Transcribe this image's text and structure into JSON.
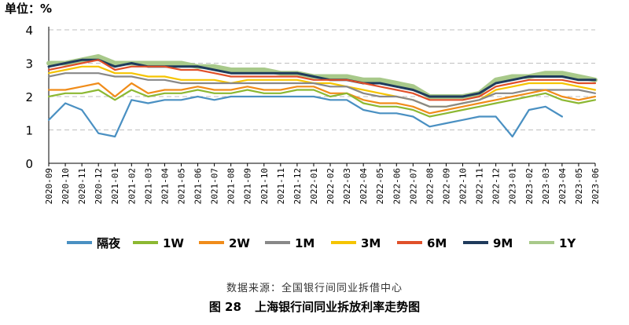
{
  "figure": {
    "unit_label": "单位：%",
    "source": "数据来源：全国银行间同业拆借中心",
    "caption_number": "图 28",
    "caption_title": "上海银行间同业拆放利率走势图"
  },
  "chart_data": {
    "type": "line",
    "title": "上海银行间同业拆放利率走势图",
    "xlabel": "",
    "ylabel": "单位：%",
    "ylim": [
      0,
      4
    ],
    "yticks": [
      0,
      1,
      2,
      3,
      4
    ],
    "grid": "horizontal-dashed",
    "legend_position": "bottom",
    "x": [
      "2020-09",
      "2020-10",
      "2020-11",
      "2020-12",
      "2021-01",
      "2021-02",
      "2021-03",
      "2021-04",
      "2021-05",
      "2021-06",
      "2021-07",
      "2021-08",
      "2021-09",
      "2021-10",
      "2021-11",
      "2021-12",
      "2022-01",
      "2022-02",
      "2022-03",
      "2022-04",
      "2022-05",
      "2022-06",
      "2022-07",
      "2022-08",
      "2022-09",
      "2022-10",
      "2022-11",
      "2022-12",
      "2023-01",
      "2023-02",
      "2023-03",
      "2023-04",
      "2023-05",
      "2023-06"
    ],
    "series": [
      {
        "name": "隔夜",
        "color": "#4a90c2",
        "values": [
          1.3,
          1.8,
          1.6,
          0.9,
          0.8,
          1.9,
          1.8,
          1.9,
          1.9,
          2.0,
          1.9,
          2.0,
          2.0,
          2.0,
          2.0,
          2.0,
          2.0,
          1.9,
          1.9,
          1.6,
          1.5,
          1.5,
          1.4,
          1.1,
          1.2,
          1.3,
          1.4,
          1.4,
          0.8,
          1.6,
          1.7,
          1.4,
          null,
          null
        ]
      },
      {
        "name": "1W",
        "color": "#8cb832",
        "values": [
          2.0,
          2.1,
          2.1,
          2.2,
          1.9,
          2.2,
          2.0,
          2.1,
          2.1,
          2.2,
          2.1,
          2.1,
          2.2,
          2.1,
          2.1,
          2.2,
          2.2,
          2.0,
          2.1,
          1.8,
          1.7,
          1.7,
          1.6,
          1.4,
          1.5,
          1.6,
          1.7,
          1.8,
          1.9,
          2.0,
          2.1,
          1.9,
          1.8,
          1.9
        ]
      },
      {
        "name": "2W",
        "color": "#f08c1a",
        "values": [
          2.2,
          2.2,
          2.3,
          2.4,
          2.0,
          2.4,
          2.1,
          2.2,
          2.2,
          2.3,
          2.2,
          2.2,
          2.3,
          2.2,
          2.2,
          2.3,
          2.3,
          2.1,
          2.1,
          1.9,
          1.8,
          1.8,
          1.7,
          1.5,
          1.6,
          1.7,
          1.8,
          1.9,
          2.0,
          2.1,
          2.2,
          2.0,
          1.9,
          2.0
        ]
      },
      {
        "name": "1M",
        "color": "#888888",
        "values": [
          2.6,
          2.7,
          2.7,
          2.7,
          2.6,
          2.6,
          2.5,
          2.5,
          2.4,
          2.4,
          2.4,
          2.4,
          2.4,
          2.4,
          2.4,
          2.4,
          2.4,
          2.3,
          2.3,
          2.1,
          2.0,
          2.0,
          1.9,
          1.7,
          1.7,
          1.8,
          1.9,
          2.1,
          2.1,
          2.2,
          2.2,
          2.2,
          2.2,
          2.1
        ]
      },
      {
        "name": "3M",
        "color": "#f5c400",
        "values": [
          2.7,
          2.8,
          2.9,
          2.9,
          2.7,
          2.7,
          2.6,
          2.6,
          2.5,
          2.5,
          2.5,
          2.4,
          2.5,
          2.5,
          2.5,
          2.5,
          2.4,
          2.4,
          2.3,
          2.2,
          2.1,
          2.0,
          1.9,
          1.7,
          1.7,
          1.8,
          1.9,
          2.2,
          2.3,
          2.4,
          2.4,
          2.4,
          2.3,
          2.2
        ]
      },
      {
        "name": "6M",
        "color": "#e0502a",
        "values": [
          2.8,
          2.9,
          3.0,
          3.1,
          2.8,
          2.9,
          2.9,
          2.9,
          2.8,
          2.8,
          2.7,
          2.6,
          2.6,
          2.6,
          2.6,
          2.6,
          2.5,
          2.5,
          2.5,
          2.4,
          2.3,
          2.2,
          2.1,
          1.9,
          1.9,
          1.9,
          2.0,
          2.3,
          2.4,
          2.5,
          2.5,
          2.5,
          2.4,
          2.4
        ]
      },
      {
        "name": "9M",
        "color": "#1f3b5c",
        "values": [
          2.9,
          3.0,
          3.1,
          3.1,
          2.9,
          3.0,
          2.9,
          2.9,
          2.9,
          2.9,
          2.8,
          2.7,
          2.7,
          2.7,
          2.7,
          2.7,
          2.6,
          2.5,
          2.5,
          2.4,
          2.4,
          2.3,
          2.2,
          2.0,
          2.0,
          2.0,
          2.1,
          2.4,
          2.5,
          2.6,
          2.6,
          2.6,
          2.5,
          2.5
        ]
      },
      {
        "name": "1Y",
        "color": "#a8c98a",
        "values": [
          3.0,
          3.0,
          3.1,
          3.2,
          3.0,
          3.0,
          3.0,
          3.0,
          3.0,
          2.9,
          2.9,
          2.8,
          2.8,
          2.8,
          2.7,
          2.7,
          2.6,
          2.6,
          2.6,
          2.5,
          2.5,
          2.4,
          2.3,
          2.0,
          2.0,
          2.0,
          2.1,
          2.5,
          2.6,
          2.6,
          2.7,
          2.7,
          2.6,
          2.5
        ]
      }
    ]
  }
}
